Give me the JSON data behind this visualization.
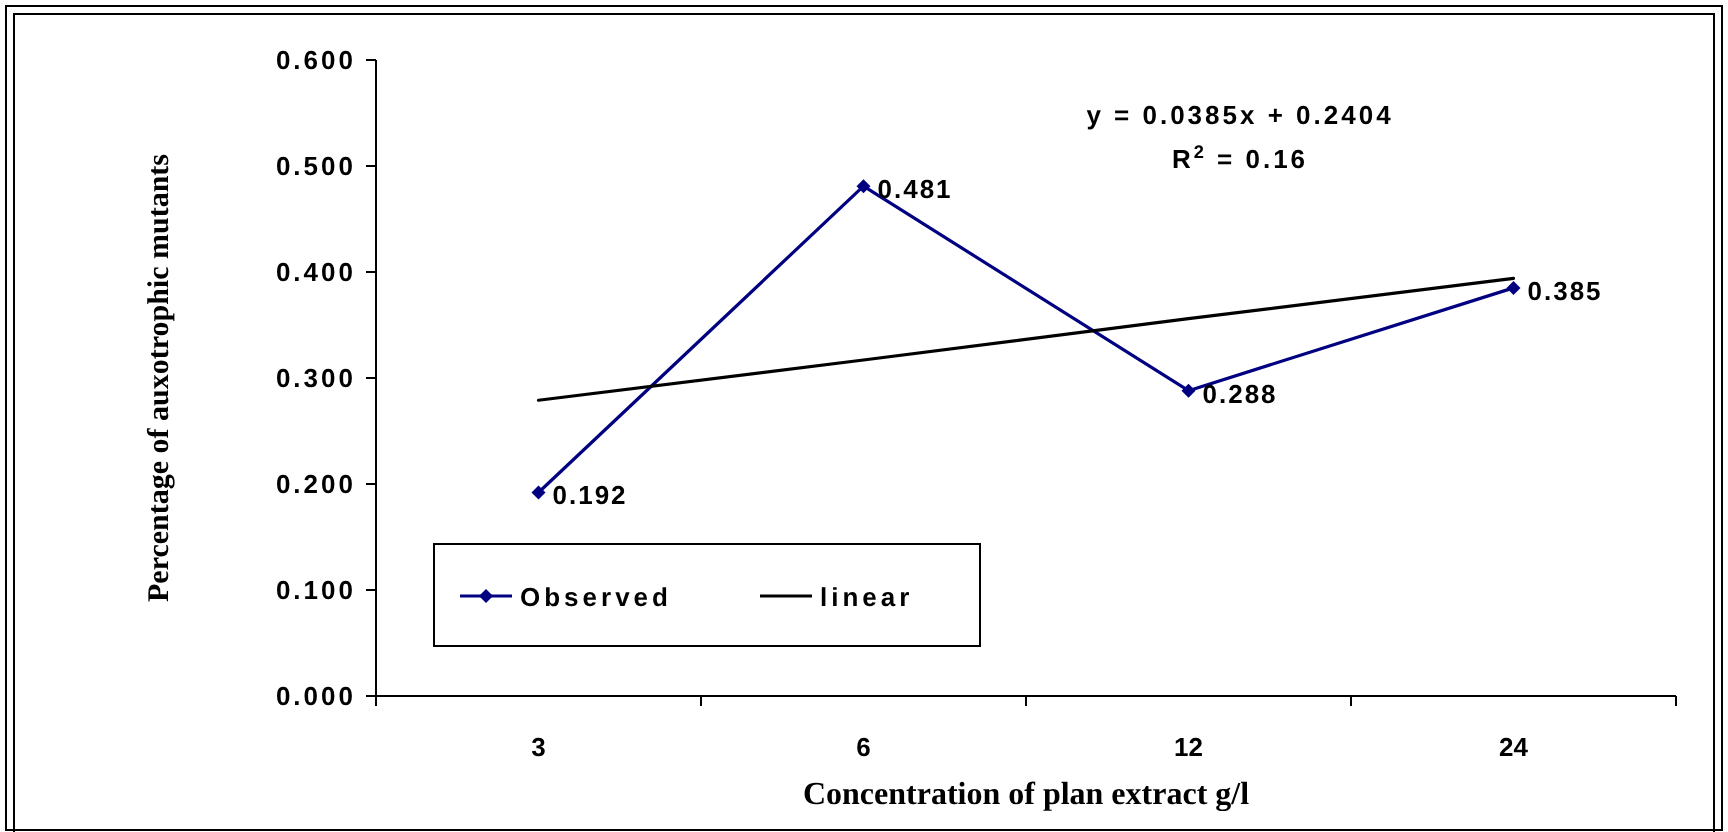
{
  "chart_data": {
    "type": "line",
    "xlabel": "Concentration of plan extract g/l",
    "ylabel": "Percentage of auxotrophic mutants",
    "categories": [
      "3",
      "6",
      "12",
      "24"
    ],
    "series": [
      {
        "name": "Observed",
        "color": "#000080",
        "values": [
          0.192,
          0.481,
          0.288,
          0.385
        ],
        "marker": "diamond",
        "value_labels": [
          "0.192",
          "0.481",
          "0.288",
          "0.385"
        ]
      },
      {
        "name": "linear",
        "type": "line",
        "color": "#000000",
        "values": [
          0.279,
          0.317,
          0.356,
          0.394
        ],
        "marker": "none"
      }
    ],
    "ylim": [
      0,
      0.6
    ],
    "yticks": [
      {
        "value": 0,
        "label": "0.000"
      },
      {
        "value": 0.1,
        "label": "0.100"
      },
      {
        "value": 0.2,
        "label": "0.200"
      },
      {
        "value": 0.3,
        "label": "0.300"
      },
      {
        "value": 0.4,
        "label": "0.400"
      },
      {
        "value": 0.5,
        "label": "0.500"
      },
      {
        "value": 0.6,
        "label": "0.600"
      }
    ],
    "annotations": [
      "y = 0.0385x + 0.2404",
      "R$^{2}$ = 0.16"
    ],
    "grid": false,
    "legend": "bottom left"
  }
}
